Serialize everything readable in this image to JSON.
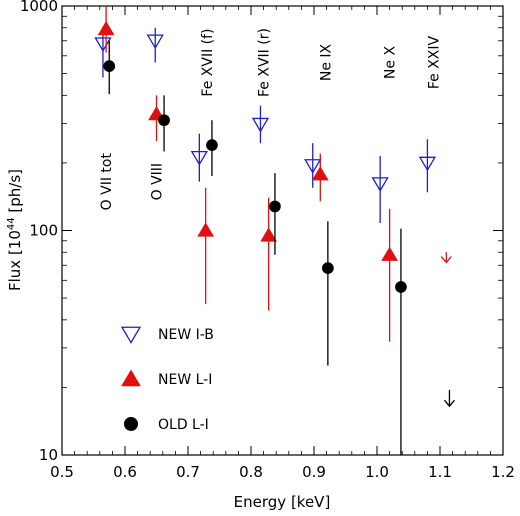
{
  "chart_data": {
    "type": "scatter",
    "title": "",
    "xlabel": "Energy [keV]",
    "ylabel_parts": {
      "pre": "Flux [10",
      "sup": "44",
      "post": " [ph/s]"
    },
    "xlim": [
      0.5,
      1.2
    ],
    "ylim": [
      10,
      1000
    ],
    "y_scale": "log",
    "grid": false,
    "x_ticks": [
      0.5,
      0.6,
      0.7,
      0.8,
      0.9,
      1.0,
      1.1,
      1.2
    ],
    "x_tick_labels": [
      "0.5",
      "0.6",
      "0.7",
      "0.8",
      "0.9",
      "1.0",
      "1.1",
      "1.2"
    ],
    "y_ticks": [
      10,
      100,
      1000
    ],
    "y_tick_labels": [
      "10",
      "100",
      "1000"
    ],
    "annotations": [
      {
        "text": "O VII tot",
        "x": 0.57,
        "y": 165
      },
      {
        "text": "O VIII",
        "x": 0.65,
        "y": 165
      },
      {
        "text": "Fe XVII (f)",
        "x": 0.73,
        "y": 560
      },
      {
        "text": "Fe XVII (r)",
        "x": 0.82,
        "y": 560
      },
      {
        "text": "Ne IX",
        "x": 0.918,
        "y": 560
      },
      {
        "text": "Ne X",
        "x": 1.02,
        "y": 560
      },
      {
        "text": "Fe XXIV",
        "x": 1.09,
        "y": 560
      }
    ],
    "legend": {
      "placement": "bottom-left",
      "entries": [
        {
          "label": "NEW I-B",
          "marker": "triangle-down-open",
          "color": "#1f1fcc"
        },
        {
          "label": "NEW L-I",
          "marker": "triangle-up-filled",
          "color": "#e01010"
        },
        {
          "label": "OLD L-I",
          "marker": "circle-filled",
          "color": "#000000"
        }
      ]
    },
    "series": [
      {
        "name": "NEW I-B",
        "color": "#1f1fcc",
        "marker": "triangle-down-open",
        "points": [
          {
            "x": 0.565,
            "y": 680,
            "ylo": 480,
            "yhi": 800
          },
          {
            "x": 0.648,
            "y": 700,
            "ylo": 560,
            "yhi": 800
          },
          {
            "x": 0.718,
            "y": 212,
            "ylo": 165,
            "yhi": 270
          },
          {
            "x": 0.815,
            "y": 298,
            "ylo": 245,
            "yhi": 360
          },
          {
            "x": 0.898,
            "y": 195,
            "ylo": 155,
            "yhi": 245
          },
          {
            "x": 1.005,
            "y": 162,
            "ylo": 108,
            "yhi": 215
          },
          {
            "x": 1.08,
            "y": 200,
            "ylo": 148,
            "yhi": 255
          }
        ]
      },
      {
        "name": "NEW L-I",
        "color": "#e01010",
        "marker": "triangle-up-filled",
        "points": [
          {
            "x": 0.57,
            "y": 790,
            "ylo": 620,
            "yhi": 1000
          },
          {
            "x": 0.65,
            "y": 330,
            "ylo": 250,
            "yhi": 400
          },
          {
            "x": 0.728,
            "y": 100,
            "ylo": 47,
            "yhi": 155
          },
          {
            "x": 0.828,
            "y": 95,
            "ylo": 44,
            "yhi": 140
          },
          {
            "x": 0.91,
            "y": 178,
            "ylo": 135,
            "yhi": 220
          },
          {
            "x": 1.02,
            "y": 78,
            "ylo": 32,
            "yhi": 125
          }
        ],
        "upper_limits": [
          {
            "x": 1.11,
            "y": 72,
            "yhi": 80
          }
        ]
      },
      {
        "name": "OLD L-I",
        "color": "#000000",
        "marker": "circle-filled",
        "points": [
          {
            "x": 0.575,
            "y": 540,
            "ylo": 405,
            "yhi": 700
          },
          {
            "x": 0.662,
            "y": 310,
            "ylo": 225,
            "yhi": 400
          },
          {
            "x": 0.738,
            "y": 240,
            "ylo": 175,
            "yhi": 310
          },
          {
            "x": 0.838,
            "y": 128,
            "ylo": 78,
            "yhi": 180
          },
          {
            "x": 0.922,
            "y": 68,
            "ylo": 25,
            "yhi": 110
          },
          {
            "x": 1.038,
            "y": 56,
            "ylo": 10,
            "yhi": 102
          }
        ],
        "upper_limits": [
          {
            "x": 1.115,
            "y": 16.5,
            "yhi": 19.5
          }
        ]
      }
    ]
  }
}
